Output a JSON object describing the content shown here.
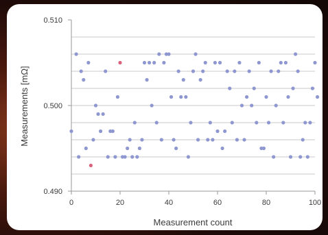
{
  "chart_data": {
    "type": "scatter",
    "xlabel": "Measurement count",
    "ylabel": "Measurements [mΩ]",
    "xlim": [
      0,
      100
    ],
    "ylim": [
      0.49,
      0.51
    ],
    "xticks": [
      0,
      20,
      40,
      60,
      80,
      100
    ],
    "yticks": [
      0.49,
      0.5,
      0.51
    ],
    "ytick_labels": [
      "0.490",
      "0.500",
      "0.510"
    ],
    "grid": true,
    "marker_color": "#8e97cf",
    "highlight_color": "#d9637c",
    "points": [
      {
        "x": 0,
        "y": 0.497
      },
      {
        "x": 2,
        "y": 0.506
      },
      {
        "x": 3,
        "y": 0.494
      },
      {
        "x": 4,
        "y": 0.504
      },
      {
        "x": 5,
        "y": 0.503
      },
      {
        "x": 6,
        "y": 0.495
      },
      {
        "x": 7,
        "y": 0.505
      },
      {
        "x": 8,
        "y": 0.493,
        "highlight": true
      },
      {
        "x": 9,
        "y": 0.496
      },
      {
        "x": 10,
        "y": 0.5
      },
      {
        "x": 11,
        "y": 0.499
      },
      {
        "x": 12,
        "y": 0.497
      },
      {
        "x": 13,
        "y": 0.499
      },
      {
        "x": 14,
        "y": 0.504
      },
      {
        "x": 15,
        "y": 0.494
      },
      {
        "x": 16,
        "y": 0.497
      },
      {
        "x": 17,
        "y": 0.497
      },
      {
        "x": 18,
        "y": 0.494
      },
      {
        "x": 19,
        "y": 0.501
      },
      {
        "x": 20,
        "y": 0.505,
        "highlight": true
      },
      {
        "x": 21,
        "y": 0.494
      },
      {
        "x": 22,
        "y": 0.494
      },
      {
        "x": 23,
        "y": 0.495
      },
      {
        "x": 24,
        "y": 0.496
      },
      {
        "x": 25,
        "y": 0.494
      },
      {
        "x": 26,
        "y": 0.498
      },
      {
        "x": 27,
        "y": 0.494
      },
      {
        "x": 28,
        "y": 0.495
      },
      {
        "x": 29,
        "y": 0.496
      },
      {
        "x": 30,
        "y": 0.505
      },
      {
        "x": 31,
        "y": 0.503
      },
      {
        "x": 32,
        "y": 0.505
      },
      {
        "x": 33,
        "y": 0.5
      },
      {
        "x": 34,
        "y": 0.505
      },
      {
        "x": 35,
        "y": 0.498
      },
      {
        "x": 36,
        "y": 0.506
      },
      {
        "x": 37,
        "y": 0.496
      },
      {
        "x": 38,
        "y": 0.505
      },
      {
        "x": 39,
        "y": 0.506
      },
      {
        "x": 40,
        "y": 0.506
      },
      {
        "x": 41,
        "y": 0.501
      },
      {
        "x": 42,
        "y": 0.496
      },
      {
        "x": 43,
        "y": 0.495
      },
      {
        "x": 44,
        "y": 0.504
      },
      {
        "x": 45,
        "y": 0.501
      },
      {
        "x": 46,
        "y": 0.503
      },
      {
        "x": 47,
        "y": 0.501
      },
      {
        "x": 48,
        "y": 0.494
      },
      {
        "x": 49,
        "y": 0.498
      },
      {
        "x": 50,
        "y": 0.504
      },
      {
        "x": 51,
        "y": 0.506
      },
      {
        "x": 52,
        "y": 0.496
      },
      {
        "x": 53,
        "y": 0.503
      },
      {
        "x": 54,
        "y": 0.504
      },
      {
        "x": 55,
        "y": 0.505
      },
      {
        "x": 56,
        "y": 0.496
      },
      {
        "x": 57,
        "y": 0.498
      },
      {
        "x": 58,
        "y": 0.496
      },
      {
        "x": 59,
        "y": 0.505
      },
      {
        "x": 60,
        "y": 0.497
      },
      {
        "x": 61,
        "y": 0.505
      },
      {
        "x": 62,
        "y": 0.495
      },
      {
        "x": 63,
        "y": 0.497
      },
      {
        "x": 64,
        "y": 0.504
      },
      {
        "x": 65,
        "y": 0.502
      },
      {
        "x": 66,
        "y": 0.498
      },
      {
        "x": 67,
        "y": 0.504
      },
      {
        "x": 68,
        "y": 0.496
      },
      {
        "x": 69,
        "y": 0.505
      },
      {
        "x": 70,
        "y": 0.5
      },
      {
        "x": 71,
        "y": 0.496
      },
      {
        "x": 72,
        "y": 0.501
      },
      {
        "x": 73,
        "y": 0.504
      },
      {
        "x": 74,
        "y": 0.5
      },
      {
        "x": 75,
        "y": 0.502
      },
      {
        "x": 76,
        "y": 0.498
      },
      {
        "x": 77,
        "y": 0.505
      },
      {
        "x": 78,
        "y": 0.495
      },
      {
        "x": 79,
        "y": 0.495
      },
      {
        "x": 80,
        "y": 0.501
      },
      {
        "x": 81,
        "y": 0.498
      },
      {
        "x": 82,
        "y": 0.504
      },
      {
        "x": 83,
        "y": 0.494
      },
      {
        "x": 84,
        "y": 0.5
      },
      {
        "x": 85,
        "y": 0.504
      },
      {
        "x": 86,
        "y": 0.505
      },
      {
        "x": 87,
        "y": 0.498
      },
      {
        "x": 88,
        "y": 0.505
      },
      {
        "x": 89,
        "y": 0.501
      },
      {
        "x": 90,
        "y": 0.494
      },
      {
        "x": 91,
        "y": 0.502
      },
      {
        "x": 92,
        "y": 0.506
      },
      {
        "x": 93,
        "y": 0.504
      },
      {
        "x": 94,
        "y": 0.494
      },
      {
        "x": 95,
        "y": 0.496
      },
      {
        "x": 96,
        "y": 0.498
      },
      {
        "x": 97,
        "y": 0.494
      },
      {
        "x": 98,
        "y": 0.498
      },
      {
        "x": 99,
        "y": 0.502
      },
      {
        "x": 100,
        "y": 0.505
      },
      {
        "x": 101,
        "y": 0.501
      }
    ]
  }
}
